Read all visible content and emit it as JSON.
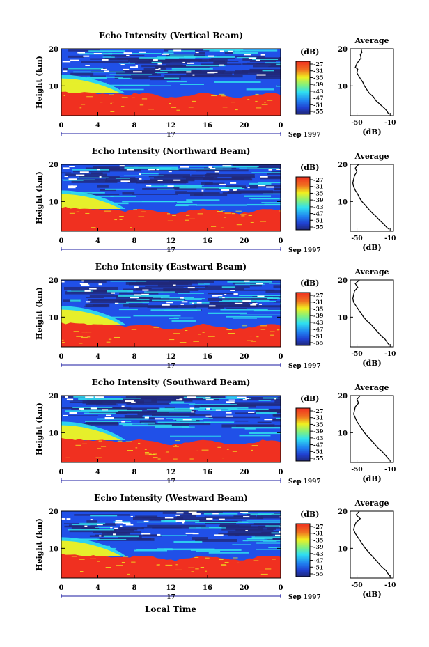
{
  "figure": {
    "xlabel_bottom": "Local Time",
    "date_label": "Sep 1997",
    "day_label": "17",
    "ylabel": "Height (km)",
    "colorbar_unit": "(dB)",
    "avg_title": "Average",
    "avg_xlabel": "(dB)",
    "colors": {
      "red": "#f03020",
      "yellow": "#f0f020",
      "cyan": "#30e0f0",
      "blue": "#2050e8",
      "navy": "#202878",
      "white": "#ffffff"
    }
  },
  "chart_data": [
    {
      "type": "heatmap",
      "title": "Echo Intensity (Vertical Beam)",
      "xlabel": "",
      "ylabel": "Height (km)",
      "x_ticks": [
        "0",
        "4",
        "8",
        "12",
        "16",
        "20",
        "0"
      ],
      "y_ticks": [
        "20",
        "10"
      ],
      "xlim": [
        0,
        24
      ],
      "ylim": [
        2,
        20
      ],
      "colorbar": {
        "label": "(dB)",
        "ticks": [
          "-27",
          "-31",
          "-35",
          "-39",
          "-43",
          "-47",
          "-51",
          "-55"
        ]
      },
      "average_profile": {
        "title": "Average",
        "xlabel": "(dB)",
        "x_ticks": [
          "-50",
          "-10"
        ],
        "y_ticks": [
          "20",
          "10"
        ],
        "xlim": [
          -58,
          -6
        ],
        "ylim": [
          2,
          20
        ],
        "points": [
          [
            -45,
            20
          ],
          [
            -44,
            19
          ],
          [
            -46,
            18.5
          ],
          [
            -45,
            17.5
          ],
          [
            -47,
            17
          ],
          [
            -50,
            16
          ],
          [
            -52,
            15
          ],
          [
            -49,
            14.5
          ],
          [
            -50,
            13.5
          ],
          [
            -46,
            12
          ],
          [
            -43,
            11
          ],
          [
            -41,
            10
          ],
          [
            -38,
            9
          ],
          [
            -35,
            8
          ],
          [
            -30,
            7
          ],
          [
            -27,
            6
          ],
          [
            -22,
            5
          ],
          [
            -17,
            4
          ],
          [
            -14,
            3.3
          ],
          [
            -12,
            2.5
          ]
        ]
      }
    },
    {
      "type": "heatmap",
      "title": "Echo Intensity (Northward Beam)",
      "xlabel": "",
      "ylabel": "Height (km)",
      "x_ticks": [
        "0",
        "4",
        "8",
        "12",
        "16",
        "20",
        "0"
      ],
      "y_ticks": [
        "20",
        "10"
      ],
      "xlim": [
        0,
        24
      ],
      "ylim": [
        2,
        20
      ],
      "colorbar": {
        "label": "(dB)",
        "ticks": [
          "-27",
          "-31",
          "-35",
          "-39",
          "-43",
          "-47",
          "-51",
          "-55"
        ]
      },
      "average_profile": {
        "title": "Average",
        "xlabel": "(dB)",
        "x_ticks": [
          "-50",
          "-10"
        ],
        "y_ticks": [
          "20",
          "10"
        ],
        "xlim": [
          -58,
          -6
        ],
        "ylim": [
          2,
          20
        ],
        "points": [
          [
            -48,
            20
          ],
          [
            -52,
            19
          ],
          [
            -50,
            18
          ],
          [
            -53,
            17
          ],
          [
            -54,
            16
          ],
          [
            -55,
            15
          ],
          [
            -54,
            14
          ],
          [
            -52,
            13
          ],
          [
            -49,
            12
          ],
          [
            -47,
            11
          ],
          [
            -44,
            10
          ],
          [
            -40,
            9
          ],
          [
            -36,
            8
          ],
          [
            -32,
            7
          ],
          [
            -27,
            6
          ],
          [
            -23,
            5
          ],
          [
            -18,
            4
          ],
          [
            -14,
            3
          ],
          [
            -11,
            2.5
          ]
        ]
      }
    },
    {
      "type": "heatmap",
      "title": "Echo Intensity (Eastward Beam)",
      "xlabel": "",
      "ylabel": "Height (km)",
      "x_ticks": [
        "0",
        "4",
        "8",
        "12",
        "16",
        "20",
        "0"
      ],
      "y_ticks": [
        "20",
        "10"
      ],
      "xlim": [
        0,
        24
      ],
      "ylim": [
        2,
        20
      ],
      "colorbar": {
        "label": "(dB)",
        "ticks": [
          "-27",
          "-31",
          "-35",
          "-39",
          "-43",
          "-47",
          "-51",
          "-55"
        ]
      },
      "average_profile": {
        "title": "Average",
        "xlabel": "(dB)",
        "x_ticks": [
          "-50",
          "-10"
        ],
        "y_ticks": [
          "20",
          "10"
        ],
        "xlim": [
          -58,
          -6
        ],
        "ylim": [
          2,
          20
        ],
        "points": [
          [
            -47,
            20
          ],
          [
            -52,
            19
          ],
          [
            -49,
            18
          ],
          [
            -53,
            17
          ],
          [
            -54,
            16
          ],
          [
            -55,
            15
          ],
          [
            -54,
            14
          ],
          [
            -51,
            13
          ],
          [
            -48,
            12
          ],
          [
            -45,
            11
          ],
          [
            -42,
            10
          ],
          [
            -38,
            9
          ],
          [
            -33,
            8
          ],
          [
            -29,
            7
          ],
          [
            -25,
            6
          ],
          [
            -21,
            5
          ],
          [
            -16,
            4
          ],
          [
            -13,
            3
          ],
          [
            -11,
            2.5
          ]
        ]
      }
    },
    {
      "type": "heatmap",
      "title": "Echo Intensity (Southward Beam)",
      "xlabel": "",
      "ylabel": "Height (km)",
      "x_ticks": [
        "0",
        "4",
        "8",
        "12",
        "16",
        "20",
        "0"
      ],
      "y_ticks": [
        "20",
        "10"
      ],
      "xlim": [
        0,
        24
      ],
      "ylim": [
        2,
        20
      ],
      "colorbar": {
        "label": "(dB)",
        "ticks": [
          "-27",
          "-31",
          "-35",
          "-39",
          "-43",
          "-47",
          "-51",
          "-55"
        ]
      },
      "average_profile": {
        "title": "Average",
        "xlabel": "(dB)",
        "x_ticks": [
          "-50",
          "-10"
        ],
        "y_ticks": [
          "20",
          "10"
        ],
        "xlim": [
          -58,
          -6
        ],
        "ylim": [
          2,
          20
        ],
        "points": [
          [
            -46,
            20
          ],
          [
            -50,
            19
          ],
          [
            -48,
            18
          ],
          [
            -52,
            17
          ],
          [
            -53,
            16
          ],
          [
            -54,
            15
          ],
          [
            -52,
            14
          ],
          [
            -50,
            13
          ],
          [
            -47,
            12
          ],
          [
            -44,
            11
          ],
          [
            -41,
            10
          ],
          [
            -37,
            9
          ],
          [
            -33,
            8
          ],
          [
            -29,
            7
          ],
          [
            -25,
            6
          ],
          [
            -20,
            5
          ],
          [
            -16,
            4
          ],
          [
            -12,
            3
          ],
          [
            -10,
            2.5
          ]
        ]
      }
    },
    {
      "type": "heatmap",
      "title": "Echo Intensity (Westward Beam)",
      "xlabel": "",
      "ylabel": "Height (km)",
      "x_ticks": [
        "0",
        "4",
        "8",
        "12",
        "16",
        "20",
        "0"
      ],
      "y_ticks": [
        "20",
        "10"
      ],
      "xlim": [
        0,
        24
      ],
      "ylim": [
        2,
        20
      ],
      "colorbar": {
        "label": "(dB)",
        "ticks": [
          "-27",
          "-31",
          "-35",
          "-39",
          "-43",
          "-47",
          "-51",
          "-55"
        ]
      },
      "average_profile": {
        "title": "Average",
        "xlabel": "(dB)",
        "x_ticks": [
          "-50",
          "-10"
        ],
        "y_ticks": [
          "20",
          "10"
        ],
        "xlim": [
          -58,
          -6
        ],
        "ylim": [
          2,
          20
        ],
        "points": [
          [
            -47,
            20
          ],
          [
            -51,
            19
          ],
          [
            -46,
            18
          ],
          [
            -51,
            17
          ],
          [
            -53,
            16
          ],
          [
            -54,
            15
          ],
          [
            -52,
            14
          ],
          [
            -49,
            13
          ],
          [
            -46,
            12
          ],
          [
            -43,
            11
          ],
          [
            -40,
            10
          ],
          [
            -36,
            9
          ],
          [
            -32,
            8
          ],
          [
            -28,
            7
          ],
          [
            -24,
            6
          ],
          [
            -20,
            5
          ],
          [
            -15,
            4
          ],
          [
            -12,
            3
          ],
          [
            -10,
            2.5
          ]
        ]
      }
    }
  ]
}
